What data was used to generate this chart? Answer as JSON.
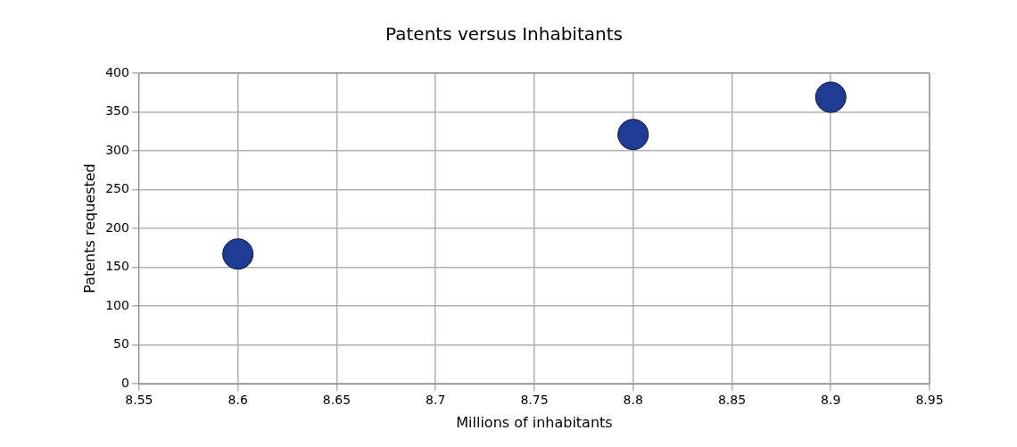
{
  "chart_data": {
    "type": "scatter",
    "title": "Patents versus Inhabitants",
    "xlabel": "Millions of inhabitants",
    "ylabel": "Patents requested",
    "x": [
      8.6,
      8.8,
      8.9
    ],
    "series": [
      {
        "color": "#1f3c94",
        "values": [
          167,
          321,
          369
        ]
      }
    ],
    "xlim": [
      8.55,
      8.95
    ],
    "xticks": [
      8.55,
      8.6,
      8.65,
      8.7,
      8.75,
      8.8,
      8.85,
      8.9,
      8.95
    ],
    "ylim": [
      0,
      400
    ],
    "yticks": [
      0,
      50,
      100,
      150,
      200,
      250,
      300,
      350,
      400
    ],
    "grid": true,
    "legend": false,
    "marker": "circle"
  }
}
